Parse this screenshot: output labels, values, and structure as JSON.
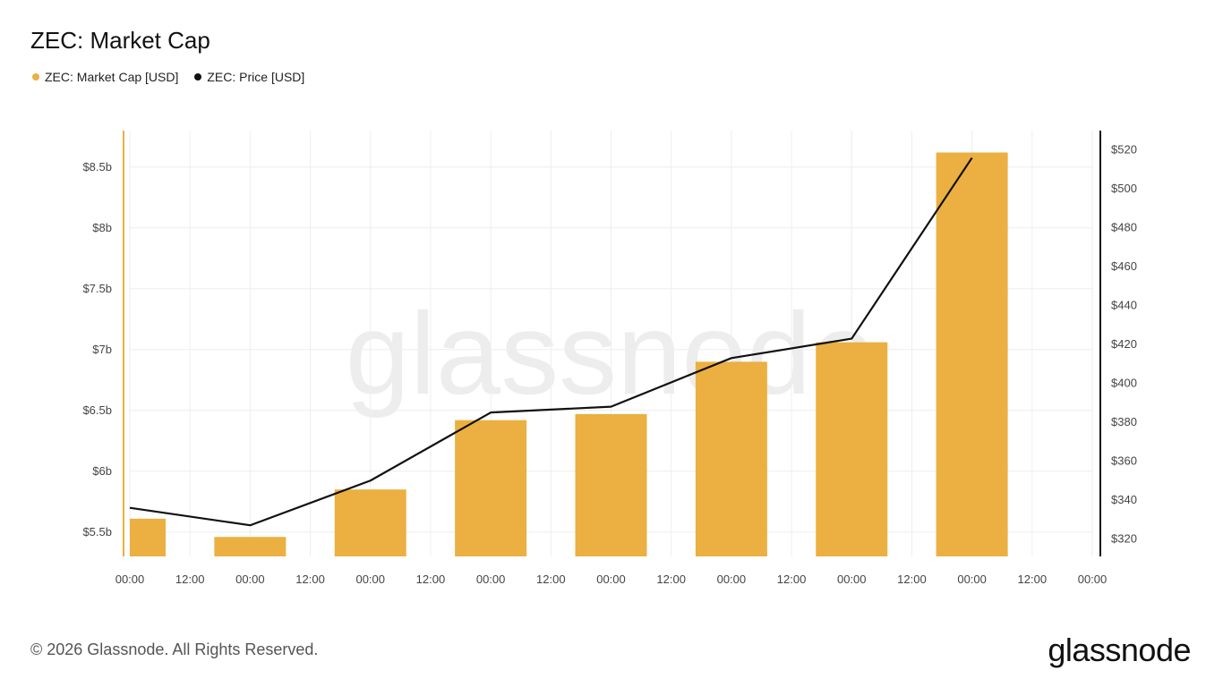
{
  "page": {
    "title": "ZEC: Market Cap",
    "footer": "© 2026 Glassnode. All Rights Reserved.",
    "brand": "glassnode",
    "watermark": "glassnode"
  },
  "legend": [
    {
      "label": "ZEC: Market Cap [USD]",
      "color": "#ebb041"
    },
    {
      "label": "ZEC: Price [USD]",
      "color": "#111111"
    }
  ],
  "colors": {
    "bar": "#ebb041",
    "line": "#111111",
    "left_axis": "#ebb041",
    "right_axis": "#111111",
    "grid": "#eeeeee"
  },
  "chart_data": {
    "type": "bar",
    "title": "ZEC: Market Cap",
    "x_tick_labels": [
      "00:00",
      "12:00",
      "00:00",
      "12:00",
      "00:00",
      "12:00",
      "00:00",
      "12:00",
      "00:00",
      "12:00",
      "00:00",
      "12:00",
      "00:00",
      "12:00",
      "00:00",
      "12:00",
      "00:00"
    ],
    "x_tick_positions": [
      0,
      0.5,
      1,
      1.5,
      2,
      2.5,
      3,
      3.5,
      4,
      4.5,
      5,
      5.5,
      6,
      6.5,
      7,
      7.5,
      8
    ],
    "xlim": [
      0,
      8
    ],
    "series": [
      {
        "name": "ZEC: Market Cap [USD]",
        "axis": "left",
        "type": "bar",
        "x": [
          0,
          1,
          2,
          3,
          4,
          5,
          6,
          7
        ],
        "values": [
          5.61,
          5.46,
          5.85,
          6.42,
          6.47,
          6.9,
          7.06,
          8.62
        ],
        "unit": "billion USD"
      },
      {
        "name": "ZEC: Price [USD]",
        "axis": "right",
        "type": "line",
        "x": [
          0,
          1,
          2,
          3,
          4,
          5,
          6,
          7
        ],
        "values": [
          336,
          327,
          350,
          385,
          388,
          413,
          423,
          516
        ],
        "unit": "USD"
      }
    ],
    "y_left": {
      "ticks": [
        5.5,
        6,
        6.5,
        7,
        7.5,
        8,
        8.5
      ],
      "tick_labels": [
        "$5.5b",
        "$6b",
        "$6.5b",
        "$7b",
        "$7.5b",
        "$8b",
        "$8.5b"
      ],
      "ylim": [
        5.3,
        8.8
      ]
    },
    "y_right": {
      "ticks": [
        320,
        340,
        360,
        380,
        400,
        420,
        440,
        460,
        480,
        500,
        520
      ],
      "tick_labels": [
        "$320",
        "$340",
        "$360",
        "$380",
        "$400",
        "$420",
        "$440",
        "$460",
        "$480",
        "$500",
        "$520"
      ],
      "ylim": [
        311,
        530
      ]
    },
    "grid": true,
    "legend_position": "top-left"
  }
}
